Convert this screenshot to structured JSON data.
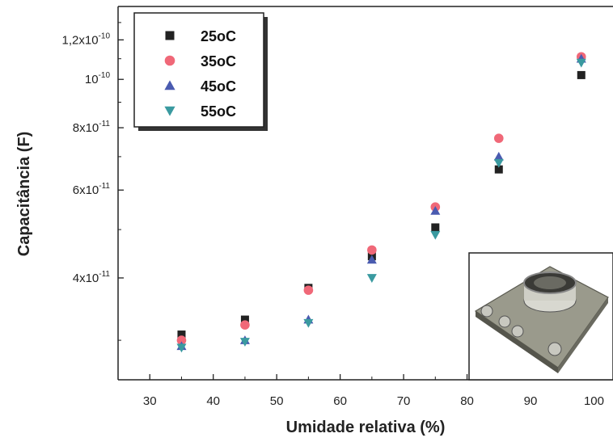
{
  "chart_data": {
    "type": "scatter",
    "xlabel": "Umidade relativa (%)",
    "ylabel": "Capacitância (F)",
    "xlim": [
      25,
      103
    ],
    "ylim": [
      2.5e-11,
      1.4e-10
    ],
    "y_scale": "log",
    "x_ticks": [
      30,
      40,
      50,
      60,
      70,
      80,
      90,
      100
    ],
    "y_ticks": [
      {
        "value": 4e-11,
        "mantissa": "4x10",
        "exponent": "-11"
      },
      {
        "value": 6e-11,
        "mantissa": "6x10",
        "exponent": "-11"
      },
      {
        "value": 8e-11,
        "mantissa": "8x10",
        "exponent": "-11"
      },
      {
        "value": 1e-10,
        "mantissa": "10",
        "exponent": "-10"
      },
      {
        "value": 1.2e-10,
        "mantissa": "1,2x10",
        "exponent": "-10"
      }
    ],
    "legend_position": "top-left",
    "grid": false,
    "x": [
      35,
      45,
      55,
      65,
      75,
      85,
      98
    ],
    "series": [
      {
        "name": "25oC",
        "marker": "square",
        "color": "#222222",
        "values": [
          3.08e-11,
          3.3e-11,
          3.82e-11,
          4.42e-11,
          5.05e-11,
          6.6e-11,
          1.02e-10
        ]
      },
      {
        "name": "35oC",
        "marker": "circle",
        "color": "#f06878",
        "values": [
          3e-11,
          3.22e-11,
          3.78e-11,
          4.55e-11,
          5.55e-11,
          7.62e-11,
          1.11e-10
        ]
      },
      {
        "name": "45oC",
        "marker": "triangle-up",
        "color": "#4a5bb0",
        "values": [
          2.92e-11,
          3e-11,
          3.3e-11,
          4.35e-11,
          5.45e-11,
          7e-11,
          1.1e-10
        ]
      },
      {
        "name": "55oC",
        "marker": "triangle-down",
        "color": "#3a9aa0",
        "values": [
          2.9e-11,
          2.98e-11,
          3.25e-11,
          4e-11,
          4.88e-11,
          6.8e-11,
          1.08e-10
        ]
      }
    ]
  },
  "inset_photo": {
    "description_icon": "sensor-photo-icon"
  }
}
